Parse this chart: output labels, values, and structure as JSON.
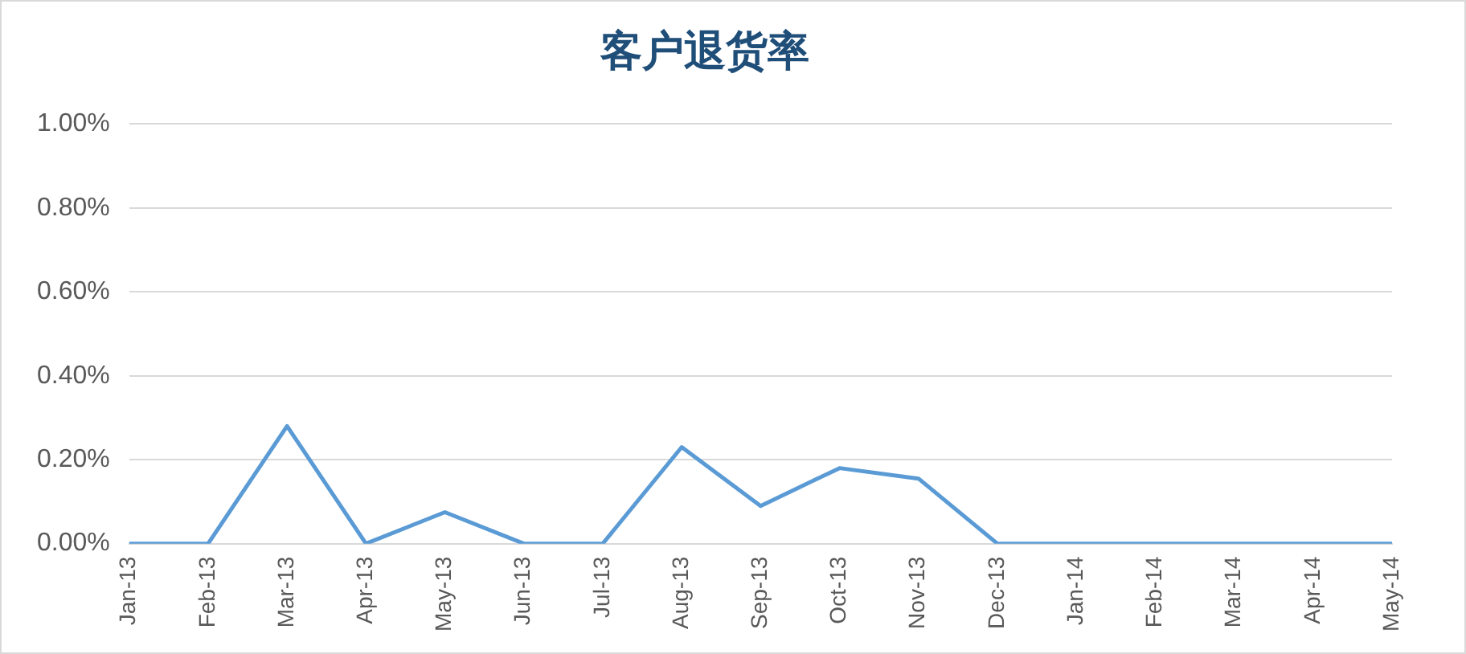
{
  "chart_data": {
    "type": "line",
    "title": "客户退货率",
    "categories": [
      "Jan-13",
      "Feb-13",
      "Mar-13",
      "Apr-13",
      "May-13",
      "Jun-13",
      "Jul-13",
      "Aug-13",
      "Sep-13",
      "Oct-13",
      "Nov-13",
      "Dec-13",
      "Jan-14",
      "Feb-14",
      "Mar-14",
      "Apr-14",
      "May-14"
    ],
    "series": [
      {
        "color": "#5b9bd5",
        "values": [
          0,
          0,
          0.28,
          0,
          0.075,
          0,
          0,
          0.23,
          0.09,
          0.18,
          0.155,
          0,
          0,
          0,
          0,
          0,
          0
        ]
      }
    ],
    "ylim": [
      0,
      1
    ],
    "yticks": [
      {
        "value": 0,
        "label": "0.00%"
      },
      {
        "value": 0.2,
        "label": "0.20%"
      },
      {
        "value": 0.4,
        "label": "0.40%"
      },
      {
        "value": 0.6,
        "label": "0.60%"
      },
      {
        "value": 0.8,
        "label": "0.80%"
      },
      {
        "value": 1,
        "label": "1.00%"
      }
    ],
    "grid": "y",
    "legend": false,
    "marker": "none",
    "line_style": "solid"
  }
}
